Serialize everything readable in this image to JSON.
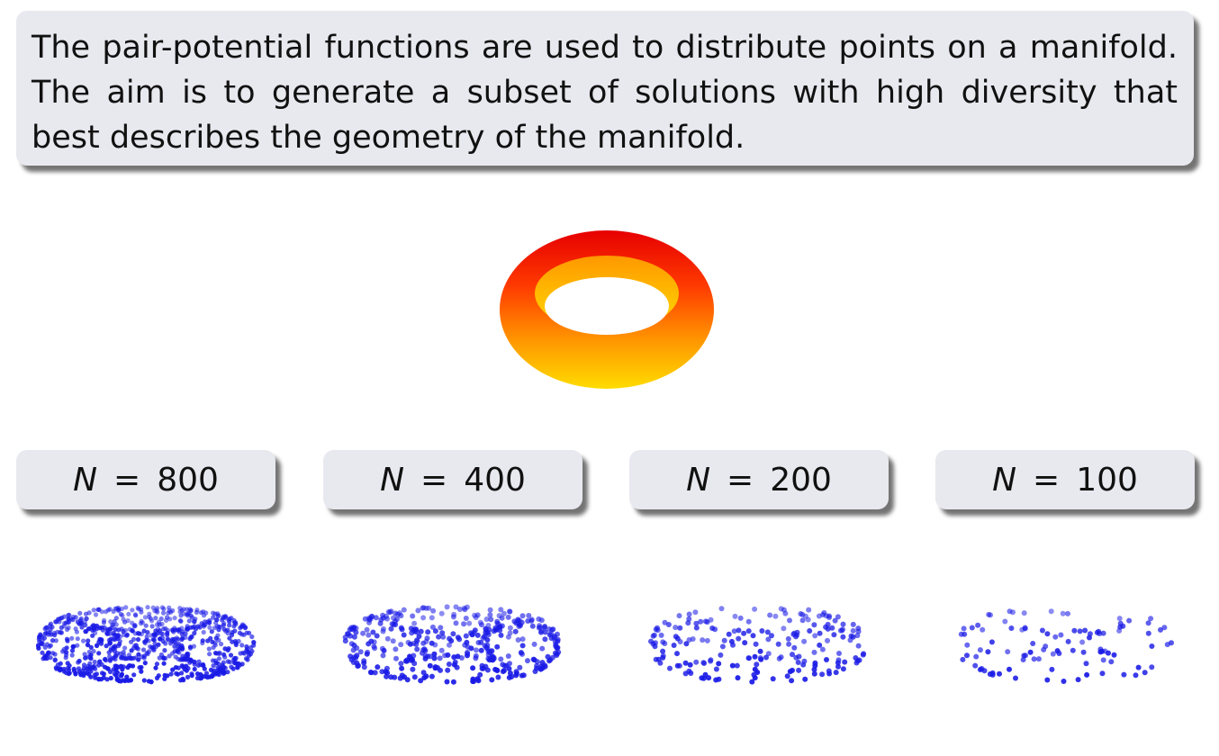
{
  "intro": {
    "text": "The pair-potential functions are used to distribute points on a manifold. The aim is to generate a subset of solutions with high diversity that best describes the geometry of the manifold."
  },
  "torus": {
    "colors": [
      "#ffdc00",
      "#ff9800",
      "#ff3a00",
      "#e60000"
    ]
  },
  "panels": [
    {
      "variable": "N",
      "equals": "=",
      "value": "800",
      "points": 800
    },
    {
      "variable": "N",
      "equals": "=",
      "value": "400",
      "points": 400
    },
    {
      "variable": "N",
      "equals": "=",
      "value": "200",
      "points": 200
    },
    {
      "variable": "N",
      "equals": "=",
      "value": "100",
      "points": 100
    }
  ],
  "point_color": "#1a1ae6"
}
